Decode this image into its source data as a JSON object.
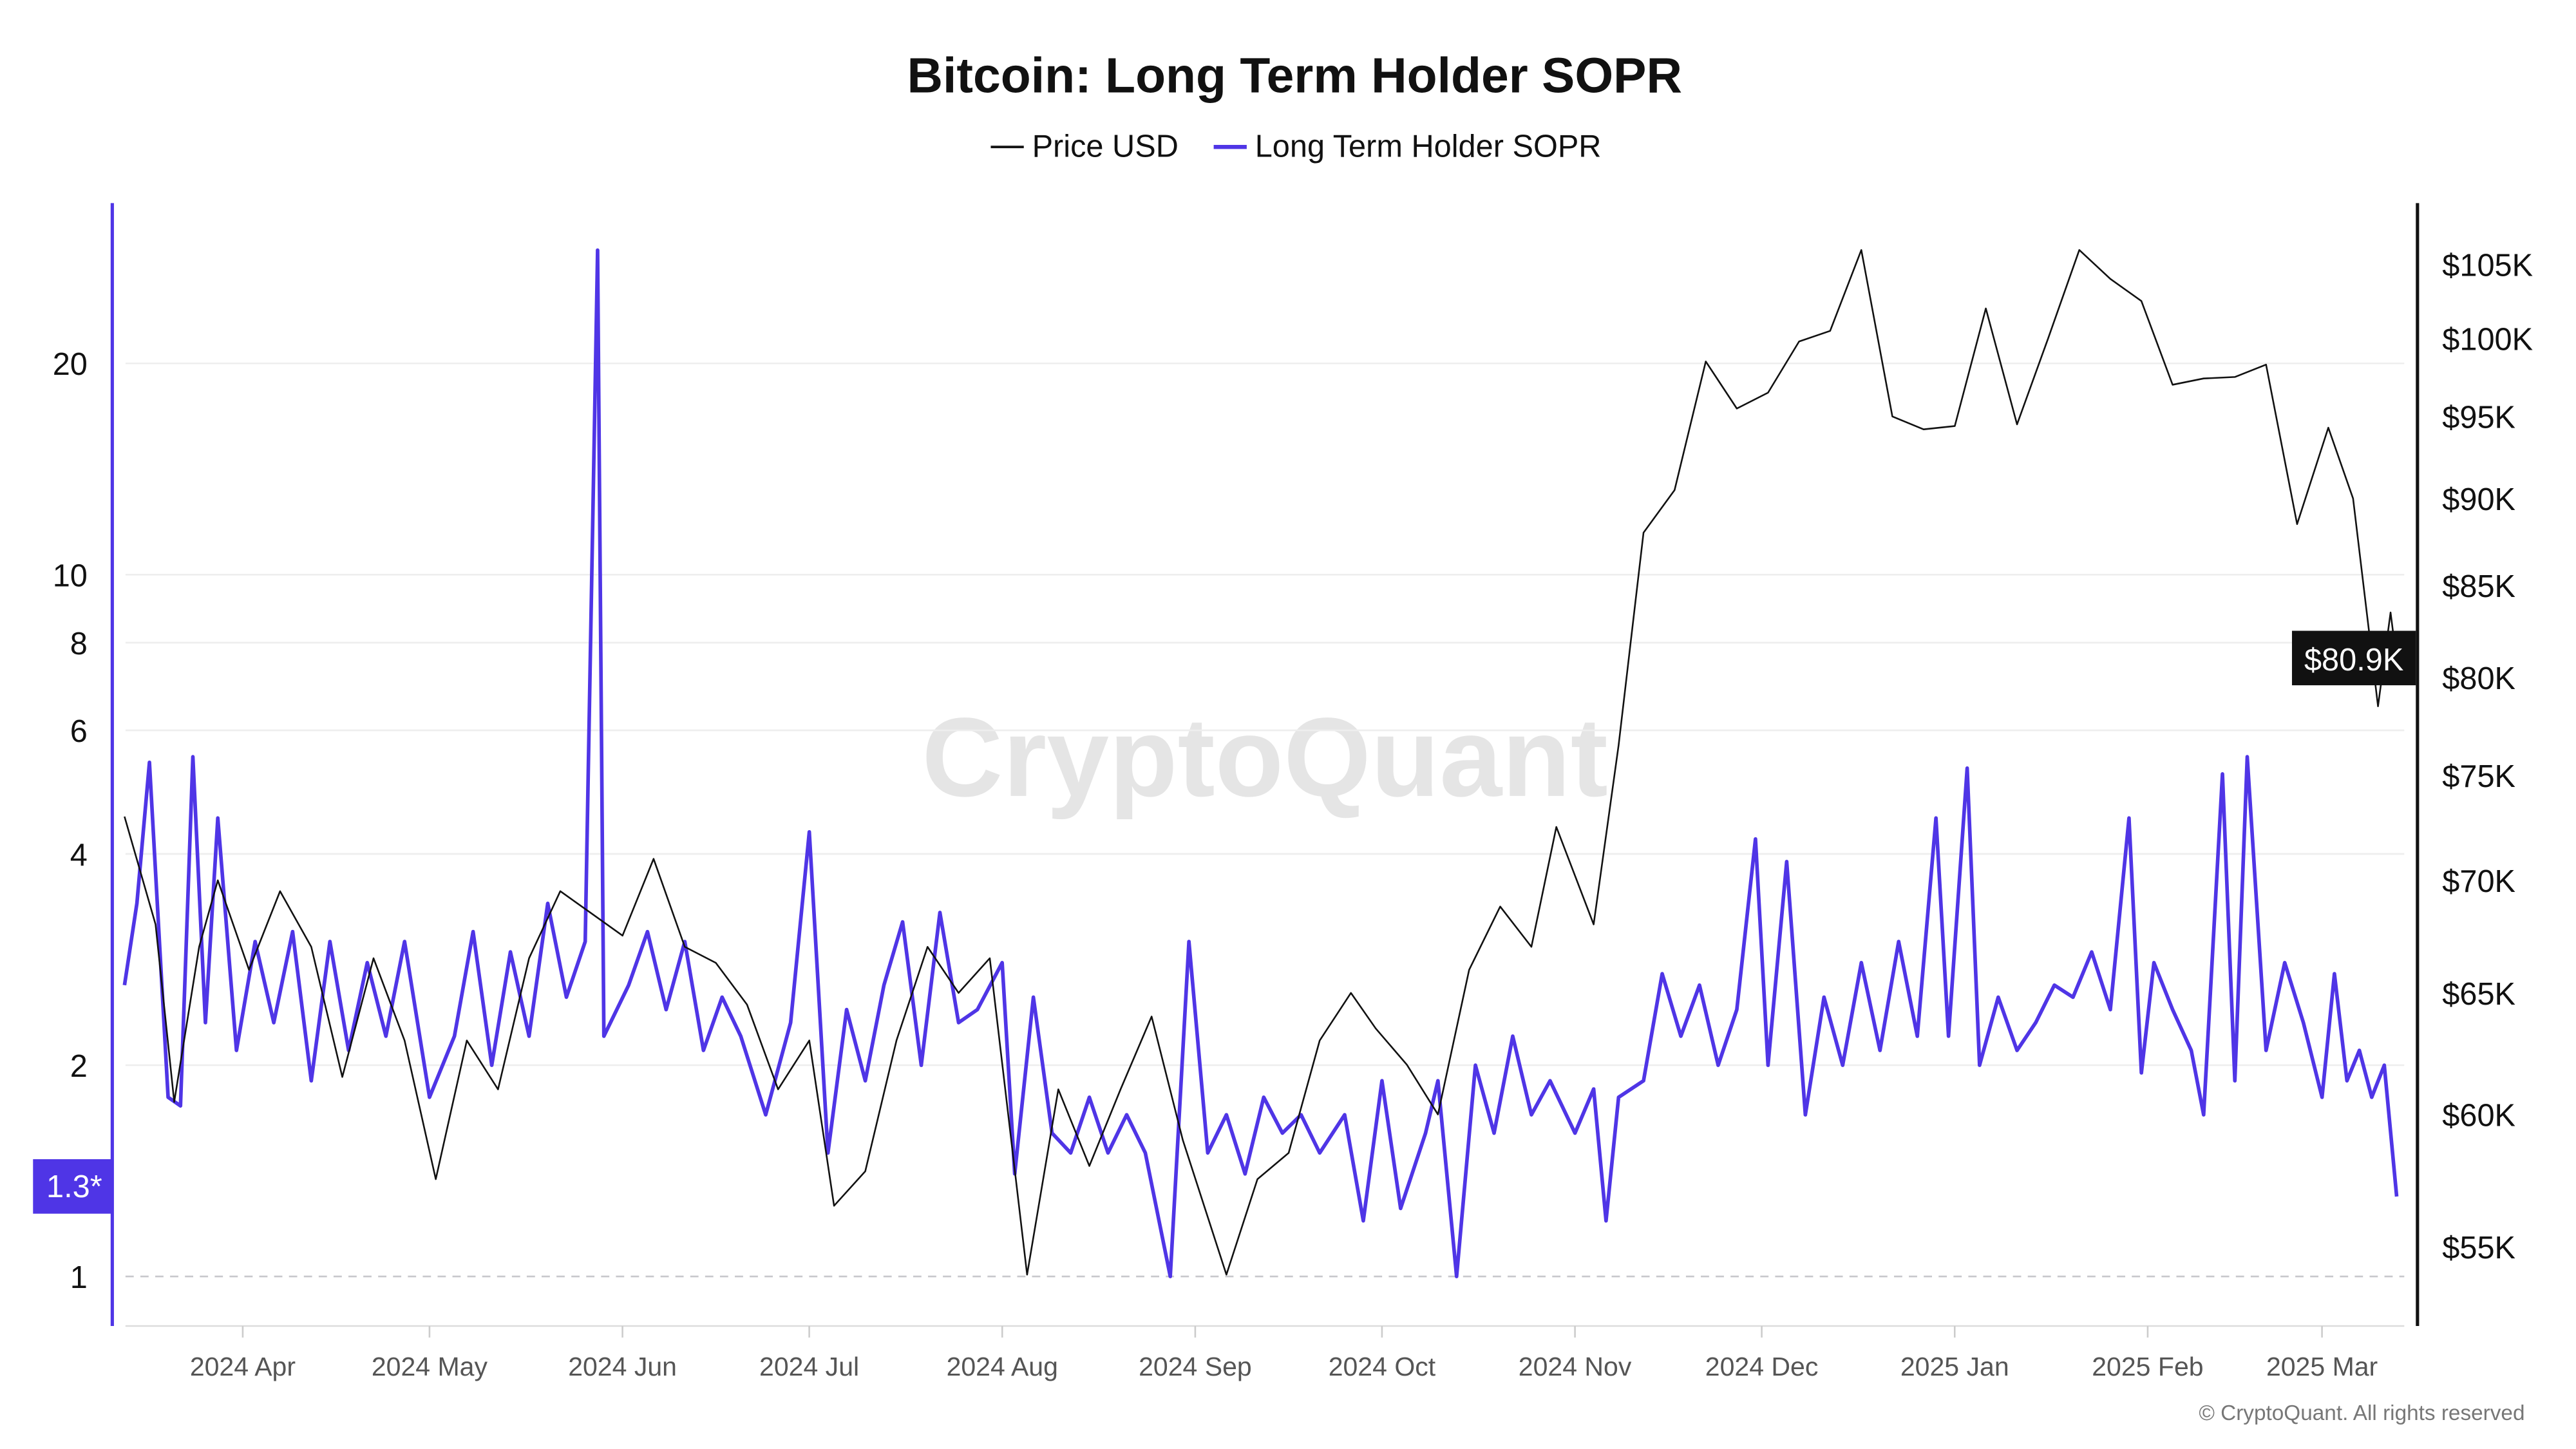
{
  "chart_data": {
    "type": "line",
    "title": "Bitcoin: Long Term Holder SOPR",
    "legend": {
      "placement": "top-center",
      "entries": [
        "Price USD",
        "Long Term Holder SOPR"
      ]
    },
    "watermark": "CryptoQuant",
    "copyright": "© CryptoQuant. All rights reserved",
    "colors": {
      "price": "#111111",
      "sopr": "#4f35e6",
      "grid": "#eeeeee",
      "baseline": "#c8c8cc",
      "xtick": "#555555"
    },
    "grid": true,
    "left_axis": {
      "scale": "log",
      "range": [
        0.93,
        32
      ],
      "ticks": [
        "1",
        "2",
        "4",
        "6",
        "8",
        "10",
        "20"
      ],
      "tick_values": [
        1,
        2,
        4,
        6,
        8,
        10,
        20
      ],
      "current_label": "1.3*",
      "current_value": 1.3,
      "reference_line": 1
    },
    "right_axis": {
      "scale": "log",
      "range": [
        52000,
        110000
      ],
      "ticks": [
        "$55K",
        "$60K",
        "$65K",
        "$70K",
        "$75K",
        "$80K",
        "$85K",
        "$90K",
        "$95K",
        "$100K",
        "$105K"
      ],
      "tick_values": [
        55000,
        60000,
        65000,
        70000,
        75000,
        80000,
        85000,
        90000,
        95000,
        100000,
        105000
      ],
      "current_label": "$80.9K",
      "current_value": 80900
    },
    "x_axis": {
      "ticks": [
        "2024 Apr",
        "2024 May",
        "2024 Jun",
        "2024 Jul",
        "2024 Aug",
        "2024 Sep",
        "2024 Oct",
        "2024 Nov",
        "2024 Dec",
        "2025 Jan",
        "2025 Feb",
        "2025 Mar"
      ],
      "tick_dates": [
        "2024-04-01",
        "2024-05-01",
        "2024-06-01",
        "2024-07-01",
        "2024-08-01",
        "2024-09-01",
        "2024-10-01",
        "2024-11-01",
        "2024-12-01",
        "2025-01-01",
        "2025-02-01",
        "2025-03-01"
      ],
      "range": [
        "2024-03-13",
        "2025-03-13"
      ]
    },
    "series": [
      {
        "name": "Price USD",
        "axis": "right",
        "points": [
          [
            "2024-03-13",
            73000
          ],
          [
            "2024-03-18",
            68000
          ],
          [
            "2024-03-21",
            60500
          ],
          [
            "2024-03-25",
            67000
          ],
          [
            "2024-03-28",
            70000
          ],
          [
            "2024-04-02",
            66000
          ],
          [
            "2024-04-07",
            69500
          ],
          [
            "2024-04-12",
            67000
          ],
          [
            "2024-04-17",
            61500
          ],
          [
            "2024-04-22",
            66500
          ],
          [
            "2024-04-27",
            63000
          ],
          [
            "2024-05-02",
            57500
          ],
          [
            "2024-05-07",
            63000
          ],
          [
            "2024-05-12",
            61000
          ],
          [
            "2024-05-17",
            66500
          ],
          [
            "2024-05-22",
            69500
          ],
          [
            "2024-05-27",
            68500
          ],
          [
            "2024-06-01",
            67500
          ],
          [
            "2024-06-06",
            71000
          ],
          [
            "2024-06-11",
            67000
          ],
          [
            "2024-06-16",
            66300
          ],
          [
            "2024-06-21",
            64500
          ],
          [
            "2024-06-26",
            61000
          ],
          [
            "2024-07-01",
            63000
          ],
          [
            "2024-07-05",
            56500
          ],
          [
            "2024-07-10",
            57800
          ],
          [
            "2024-07-15",
            63000
          ],
          [
            "2024-07-20",
            67000
          ],
          [
            "2024-07-25",
            65000
          ],
          [
            "2024-07-30",
            66500
          ],
          [
            "2024-08-05",
            54000
          ],
          [
            "2024-08-10",
            61000
          ],
          [
            "2024-08-15",
            58000
          ],
          [
            "2024-08-20",
            61000
          ],
          [
            "2024-08-25",
            64000
          ],
          [
            "2024-08-30",
            59000
          ],
          [
            "2024-09-06",
            54000
          ],
          [
            "2024-09-11",
            57500
          ],
          [
            "2024-09-16",
            58500
          ],
          [
            "2024-09-21",
            63000
          ],
          [
            "2024-09-26",
            65000
          ],
          [
            "2024-09-30",
            63500
          ],
          [
            "2024-10-05",
            62000
          ],
          [
            "2024-10-10",
            60000
          ],
          [
            "2024-10-15",
            66000
          ],
          [
            "2024-10-20",
            68800
          ],
          [
            "2024-10-25",
            67000
          ],
          [
            "2024-10-29",
            72500
          ],
          [
            "2024-11-04",
            68000
          ],
          [
            "2024-11-08",
            76500
          ],
          [
            "2024-11-12",
            88000
          ],
          [
            "2024-11-17",
            90500
          ],
          [
            "2024-11-22",
            98500
          ],
          [
            "2024-11-27",
            95500
          ],
          [
            "2024-12-02",
            96500
          ],
          [
            "2024-12-07",
            99800
          ],
          [
            "2024-12-12",
            100500
          ],
          [
            "2024-12-17",
            106000
          ],
          [
            "2024-12-22",
            95000
          ],
          [
            "2024-12-27",
            94200
          ],
          [
            "2025-01-01",
            94400
          ],
          [
            "2025-01-06",
            102000
          ],
          [
            "2025-01-11",
            94500
          ],
          [
            "2025-01-16",
            100000
          ],
          [
            "2025-01-21",
            106000
          ],
          [
            "2025-01-26",
            104000
          ],
          [
            "2025-01-31",
            102500
          ],
          [
            "2025-02-05",
            97000
          ],
          [
            "2025-02-10",
            97400
          ],
          [
            "2025-02-15",
            97500
          ],
          [
            "2025-02-20",
            98300
          ],
          [
            "2025-02-25",
            88500
          ],
          [
            "2025-03-02",
            94300
          ],
          [
            "2025-03-06",
            90000
          ],
          [
            "2025-03-10",
            78500
          ],
          [
            "2025-03-12",
            83500
          ],
          [
            "2025-03-13",
            80900
          ]
        ]
      },
      {
        "name": "Long Term Holder SOPR",
        "axis": "left",
        "points": [
          [
            "2024-03-13",
            2.6
          ],
          [
            "2024-03-15",
            3.4
          ],
          [
            "2024-03-17",
            5.4
          ],
          [
            "2024-03-20",
            1.8
          ],
          [
            "2024-03-22",
            1.75
          ],
          [
            "2024-03-24",
            5.5
          ],
          [
            "2024-03-26",
            2.3
          ],
          [
            "2024-03-28",
            4.5
          ],
          [
            "2024-03-31",
            2.1
          ],
          [
            "2024-04-03",
            3.0
          ],
          [
            "2024-04-06",
            2.3
          ],
          [
            "2024-04-09",
            3.1
          ],
          [
            "2024-04-12",
            1.9
          ],
          [
            "2024-04-15",
            3.0
          ],
          [
            "2024-04-18",
            2.1
          ],
          [
            "2024-04-21",
            2.8
          ],
          [
            "2024-04-24",
            2.2
          ],
          [
            "2024-04-27",
            3.0
          ],
          [
            "2024-05-01",
            1.8
          ],
          [
            "2024-05-05",
            2.2
          ],
          [
            "2024-05-08",
            3.1
          ],
          [
            "2024-05-11",
            2.0
          ],
          [
            "2024-05-14",
            2.9
          ],
          [
            "2024-05-17",
            2.2
          ],
          [
            "2024-05-20",
            3.4
          ],
          [
            "2024-05-23",
            2.5
          ],
          [
            "2024-05-26",
            3.0
          ],
          [
            "2024-05-28",
            29
          ],
          [
            "2024-05-29",
            2.2
          ],
          [
            "2024-06-02",
            2.6
          ],
          [
            "2024-06-05",
            3.1
          ],
          [
            "2024-06-08",
            2.4
          ],
          [
            "2024-06-11",
            3.0
          ],
          [
            "2024-06-14",
            2.1
          ],
          [
            "2024-06-17",
            2.5
          ],
          [
            "2024-06-20",
            2.2
          ],
          [
            "2024-06-24",
            1.7
          ],
          [
            "2024-06-28",
            2.3
          ],
          [
            "2024-07-01",
            4.3
          ],
          [
            "2024-07-04",
            1.5
          ],
          [
            "2024-07-07",
            2.4
          ],
          [
            "2024-07-10",
            1.9
          ],
          [
            "2024-07-13",
            2.6
          ],
          [
            "2024-07-16",
            3.2
          ],
          [
            "2024-07-19",
            2.0
          ],
          [
            "2024-07-22",
            3.3
          ],
          [
            "2024-07-25",
            2.3
          ],
          [
            "2024-07-28",
            2.4
          ],
          [
            "2024-08-01",
            2.8
          ],
          [
            "2024-08-03",
            1.4
          ],
          [
            "2024-08-06",
            2.5
          ],
          [
            "2024-08-09",
            1.6
          ],
          [
            "2024-08-12",
            1.5
          ],
          [
            "2024-08-15",
            1.8
          ],
          [
            "2024-08-18",
            1.5
          ],
          [
            "2024-08-21",
            1.7
          ],
          [
            "2024-08-24",
            1.5
          ],
          [
            "2024-08-28",
            1.0
          ],
          [
            "2024-08-31",
            3.0
          ],
          [
            "2024-09-03",
            1.5
          ],
          [
            "2024-09-06",
            1.7
          ],
          [
            "2024-09-09",
            1.4
          ],
          [
            "2024-09-12",
            1.8
          ],
          [
            "2024-09-15",
            1.6
          ],
          [
            "2024-09-18",
            1.7
          ],
          [
            "2024-09-21",
            1.5
          ],
          [
            "2024-09-25",
            1.7
          ],
          [
            "2024-09-28",
            1.2
          ],
          [
            "2024-10-01",
            1.9
          ],
          [
            "2024-10-04",
            1.25
          ],
          [
            "2024-10-08",
            1.6
          ],
          [
            "2024-10-10",
            1.9
          ],
          [
            "2024-10-13",
            1.0
          ],
          [
            "2024-10-16",
            2.0
          ],
          [
            "2024-10-19",
            1.6
          ],
          [
            "2024-10-22",
            2.2
          ],
          [
            "2024-10-25",
            1.7
          ],
          [
            "2024-10-28",
            1.9
          ],
          [
            "2024-11-01",
            1.6
          ],
          [
            "2024-11-04",
            1.85
          ],
          [
            "2024-11-06",
            1.2
          ],
          [
            "2024-11-08",
            1.8
          ],
          [
            "2024-11-12",
            1.9
          ],
          [
            "2024-11-15",
            2.7
          ],
          [
            "2024-11-18",
            2.2
          ],
          [
            "2024-11-21",
            2.6
          ],
          [
            "2024-11-24",
            2.0
          ],
          [
            "2024-11-27",
            2.4
          ],
          [
            "2024-11-30",
            4.2
          ],
          [
            "2024-12-02",
            2.0
          ],
          [
            "2024-12-05",
            3.9
          ],
          [
            "2024-12-08",
            1.7
          ],
          [
            "2024-12-11",
            2.5
          ],
          [
            "2024-12-14",
            2.0
          ],
          [
            "2024-12-17",
            2.8
          ],
          [
            "2024-12-20",
            2.1
          ],
          [
            "2024-12-23",
            3.0
          ],
          [
            "2024-12-26",
            2.2
          ],
          [
            "2024-12-29",
            4.5
          ],
          [
            "2024-12-31",
            2.2
          ],
          [
            "2025-01-03",
            5.3
          ],
          [
            "2025-01-05",
            2.0
          ],
          [
            "2025-01-08",
            2.5
          ],
          [
            "2025-01-11",
            2.1
          ],
          [
            "2025-01-14",
            2.3
          ],
          [
            "2025-01-17",
            2.6
          ],
          [
            "2025-01-20",
            2.5
          ],
          [
            "2025-01-23",
            2.9
          ],
          [
            "2025-01-26",
            2.4
          ],
          [
            "2025-01-29",
            4.5
          ],
          [
            "2025-01-31",
            1.95
          ],
          [
            "2025-02-02",
            2.8
          ],
          [
            "2025-02-05",
            2.4
          ],
          [
            "2025-02-08",
            2.1
          ],
          [
            "2025-02-10",
            1.7
          ],
          [
            "2025-02-13",
            5.2
          ],
          [
            "2025-02-15",
            1.9
          ],
          [
            "2025-02-17",
            5.5
          ],
          [
            "2025-02-20",
            2.1
          ],
          [
            "2025-02-23",
            2.8
          ],
          [
            "2025-02-26",
            2.3
          ],
          [
            "2025-03-01",
            1.8
          ],
          [
            "2025-03-03",
            2.7
          ],
          [
            "2025-03-05",
            1.9
          ],
          [
            "2025-03-07",
            2.1
          ],
          [
            "2025-03-09",
            1.8
          ],
          [
            "2025-03-11",
            2.0
          ],
          [
            "2025-03-13",
            1.3
          ]
        ]
      }
    ]
  }
}
